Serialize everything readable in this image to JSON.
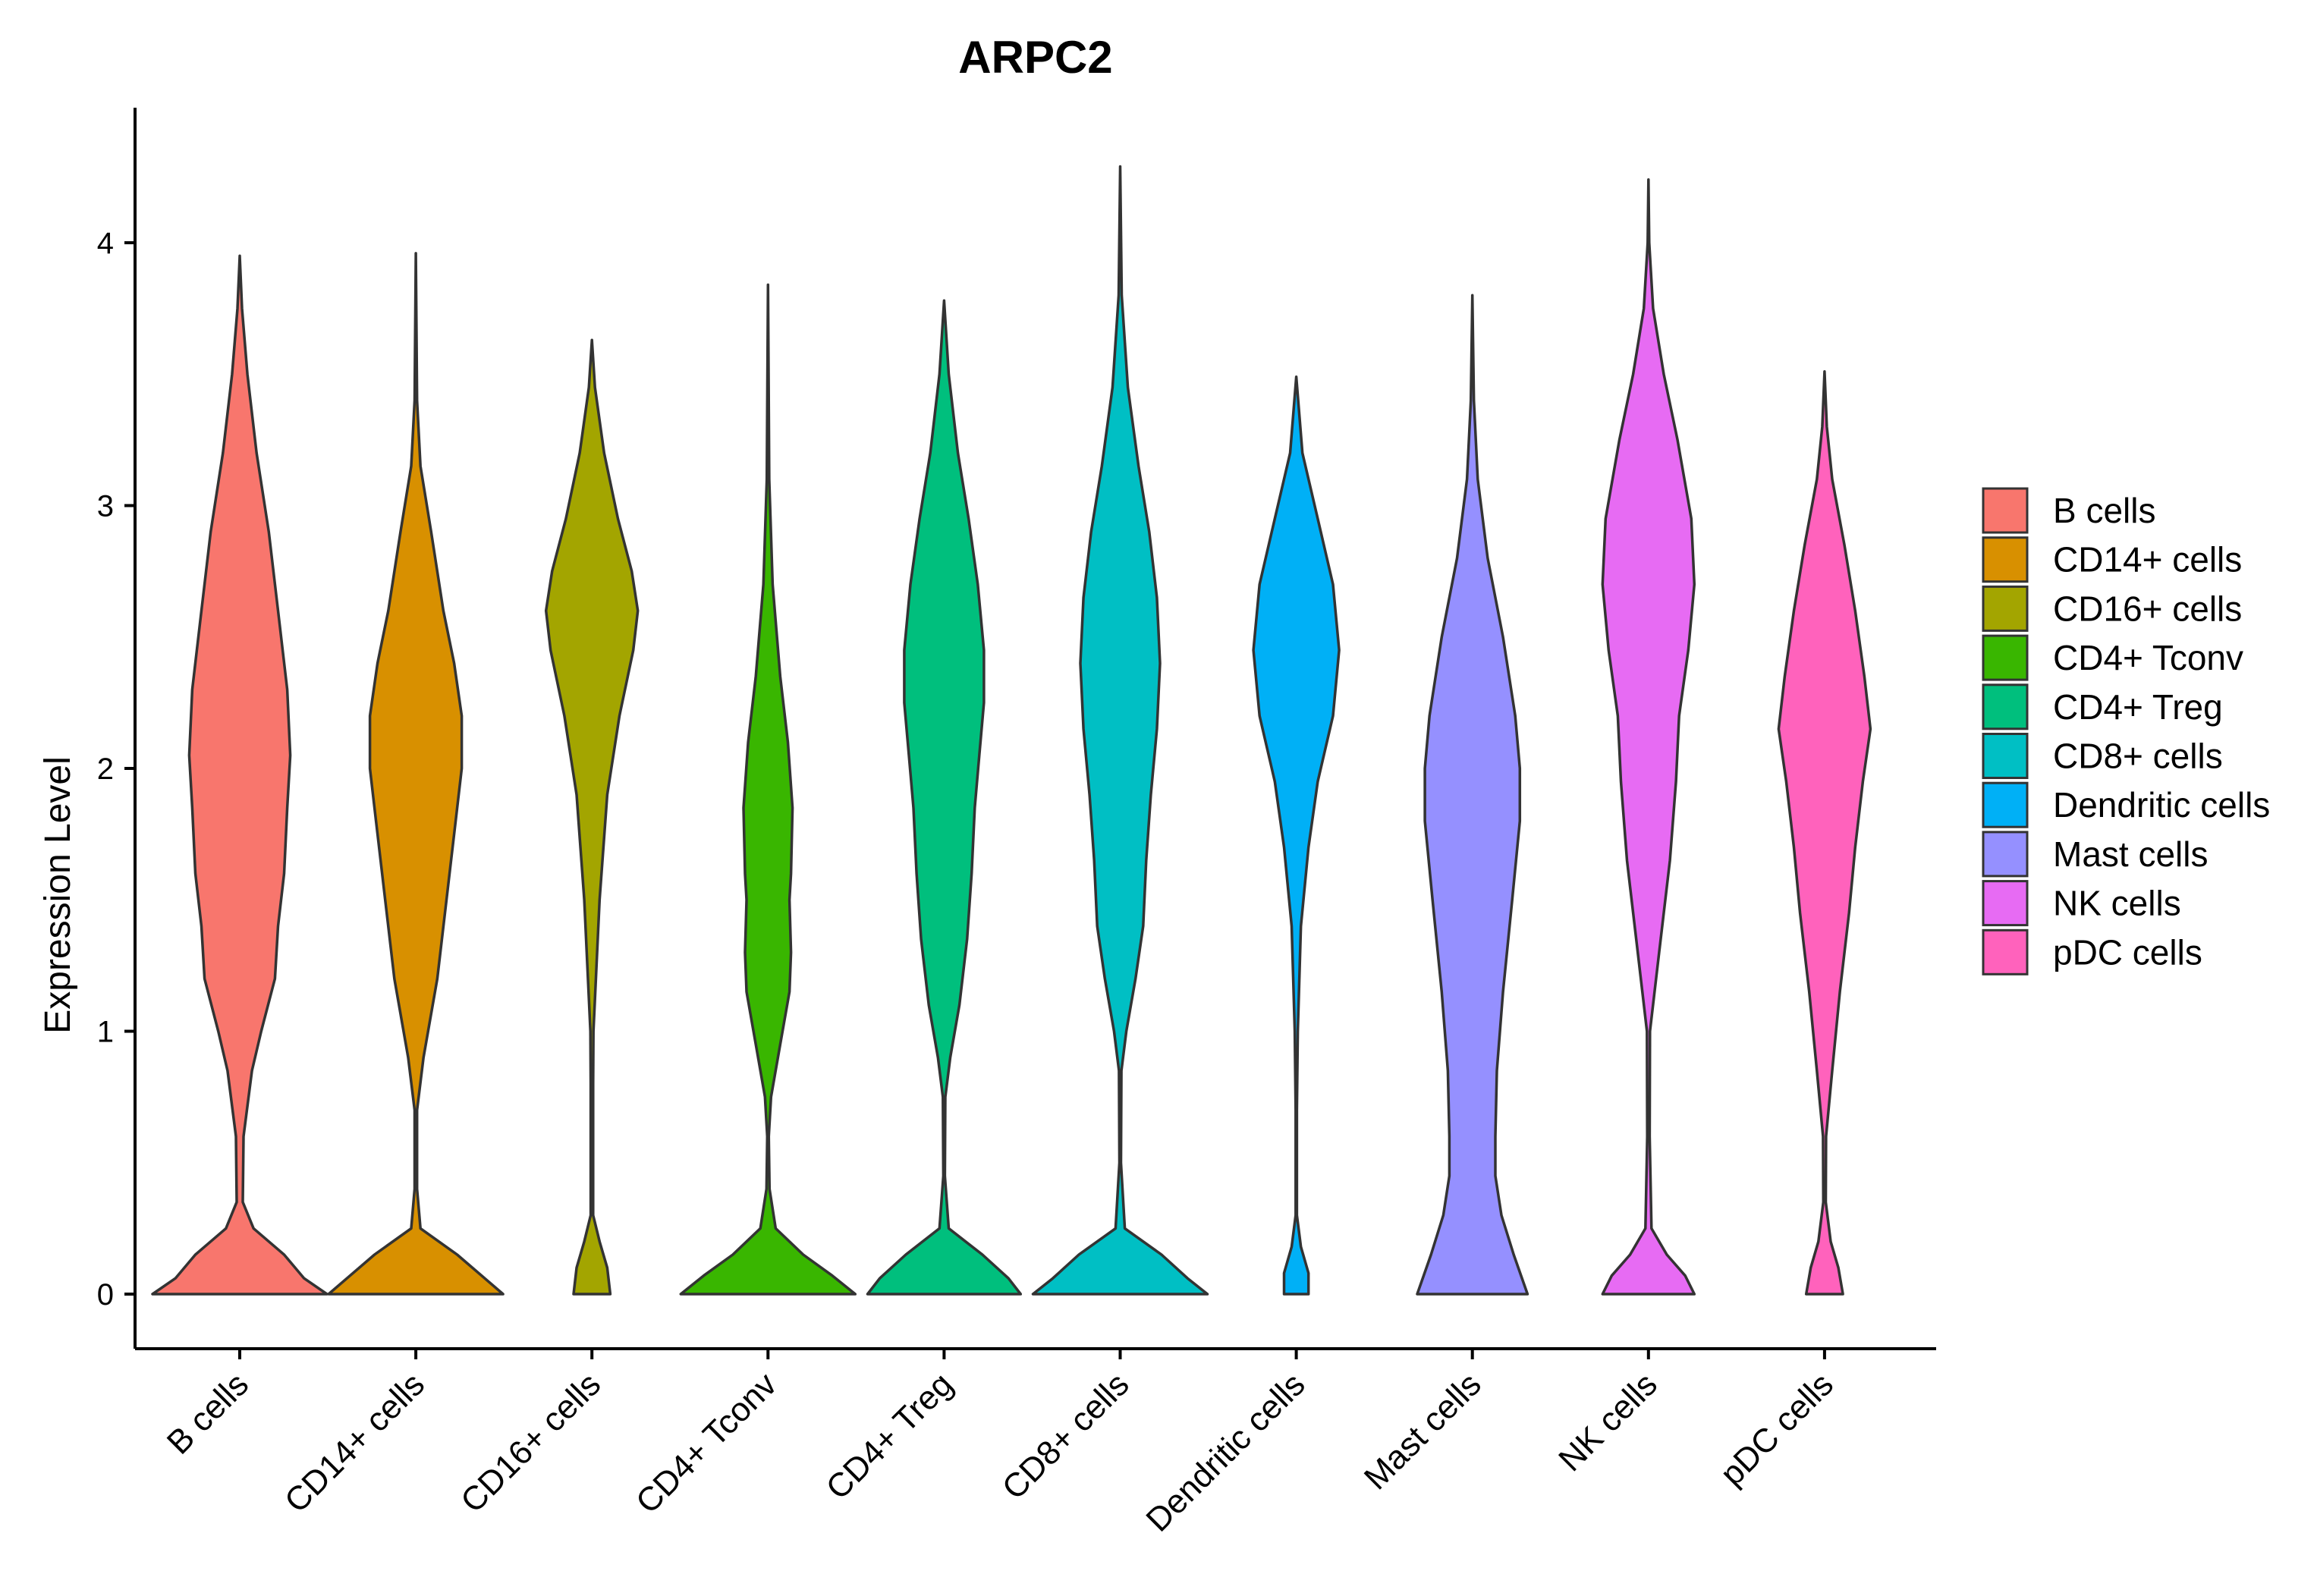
{
  "chart_data": {
    "type": "violin",
    "title": "ARPC2",
    "xlabel": "",
    "ylabel": "Expression Level",
    "ylim": [
      -0.2,
      4.5
    ],
    "yticks": [
      0,
      1,
      2,
      3,
      4
    ],
    "ytick_labels": [
      "0",
      "1",
      "2",
      "3",
      "4"
    ],
    "legend_position": "right",
    "grid": false,
    "categories": [
      "B cells",
      "CD14+ cells",
      "CD16+ cells",
      "CD4+ Tconv",
      "CD4+ Treg",
      "CD8+ cells",
      "Dendritic cells",
      "Mast cells",
      "NK cells",
      "pDC cells"
    ],
    "series": [
      {
        "name": "B cells",
        "color": "#F8766D",
        "max": 3.95,
        "profile": [
          [
            0,
            0.57
          ],
          [
            0.06,
            0.42
          ],
          [
            0.15,
            0.29
          ],
          [
            0.25,
            0.09
          ],
          [
            0.35,
            0.02
          ],
          [
            0.6,
            0.025
          ],
          [
            0.85,
            0.08
          ],
          [
            1.0,
            0.14
          ],
          [
            1.2,
            0.23
          ],
          [
            1.4,
            0.25
          ],
          [
            1.6,
            0.29
          ],
          [
            1.85,
            0.31
          ],
          [
            2.05,
            0.33
          ],
          [
            2.3,
            0.31
          ],
          [
            2.6,
            0.25
          ],
          [
            2.9,
            0.19
          ],
          [
            3.2,
            0.11
          ],
          [
            3.5,
            0.05
          ],
          [
            3.75,
            0.015
          ],
          [
            3.95,
            0
          ]
        ]
      },
      {
        "name": "CD14+ cells",
        "color": "#D89000",
        "max": 3.96,
        "profile": [
          [
            0,
            0.57
          ],
          [
            0.06,
            0.45
          ],
          [
            0.15,
            0.27
          ],
          [
            0.25,
            0.03
          ],
          [
            0.4,
            0.008
          ],
          [
            0.7,
            0.008
          ],
          [
            0.9,
            0.05
          ],
          [
            1.2,
            0.14
          ],
          [
            1.5,
            0.2
          ],
          [
            1.8,
            0.26
          ],
          [
            2.0,
            0.3
          ],
          [
            2.2,
            0.3
          ],
          [
            2.4,
            0.25
          ],
          [
            2.6,
            0.18
          ],
          [
            2.9,
            0.1
          ],
          [
            3.15,
            0.03
          ],
          [
            3.4,
            0.008
          ],
          [
            3.96,
            0
          ]
        ]
      },
      {
        "name": "CD16+ cells",
        "color": "#A3A500",
        "max": 3.63,
        "profile": [
          [
            0,
            0.12
          ],
          [
            0.1,
            0.1
          ],
          [
            0.2,
            0.05
          ],
          [
            0.3,
            0.008
          ],
          [
            0.8,
            0.008
          ],
          [
            1.0,
            0.01
          ],
          [
            1.5,
            0.05
          ],
          [
            1.9,
            0.1
          ],
          [
            2.2,
            0.18
          ],
          [
            2.45,
            0.27
          ],
          [
            2.6,
            0.3
          ],
          [
            2.75,
            0.26
          ],
          [
            2.95,
            0.17
          ],
          [
            3.2,
            0.08
          ],
          [
            3.45,
            0.02
          ],
          [
            3.63,
            0
          ]
        ]
      },
      {
        "name": "CD4+ Tconv",
        "color": "#39B600",
        "max": 3.84,
        "profile": [
          [
            0,
            0.57
          ],
          [
            0.07,
            0.42
          ],
          [
            0.15,
            0.23
          ],
          [
            0.25,
            0.05
          ],
          [
            0.4,
            0.01
          ],
          [
            0.6,
            0.005
          ],
          [
            0.75,
            0.02
          ],
          [
            0.95,
            0.08
          ],
          [
            1.15,
            0.14
          ],
          [
            1.3,
            0.15
          ],
          [
            1.5,
            0.14
          ],
          [
            1.6,
            0.15
          ],
          [
            1.85,
            0.16
          ],
          [
            2.1,
            0.13
          ],
          [
            2.35,
            0.08
          ],
          [
            2.7,
            0.03
          ],
          [
            3.1,
            0.008
          ],
          [
            3.84,
            0
          ]
        ]
      },
      {
        "name": "CD4+ Treg",
        "color": "#00BF7D",
        "max": 3.78,
        "profile": [
          [
            0,
            0.5
          ],
          [
            0.06,
            0.42
          ],
          [
            0.15,
            0.25
          ],
          [
            0.25,
            0.03
          ],
          [
            0.45,
            0.005
          ],
          [
            0.75,
            0.008
          ],
          [
            0.9,
            0.04
          ],
          [
            1.1,
            0.1
          ],
          [
            1.35,
            0.15
          ],
          [
            1.6,
            0.18
          ],
          [
            1.85,
            0.2
          ],
          [
            2.05,
            0.23
          ],
          [
            2.25,
            0.26
          ],
          [
            2.45,
            0.26
          ],
          [
            2.7,
            0.22
          ],
          [
            2.95,
            0.16
          ],
          [
            3.2,
            0.09
          ],
          [
            3.5,
            0.03
          ],
          [
            3.78,
            0
          ]
        ]
      },
      {
        "name": "CD8+ cells",
        "color": "#00BFC4",
        "max": 4.29,
        "profile": [
          [
            0,
            0.57
          ],
          [
            0.06,
            0.44
          ],
          [
            0.15,
            0.27
          ],
          [
            0.25,
            0.03
          ],
          [
            0.5,
            0.005
          ],
          [
            0.85,
            0.008
          ],
          [
            1.0,
            0.04
          ],
          [
            1.2,
            0.1
          ],
          [
            1.4,
            0.15
          ],
          [
            1.65,
            0.17
          ],
          [
            1.9,
            0.2
          ],
          [
            2.15,
            0.24
          ],
          [
            2.4,
            0.26
          ],
          [
            2.65,
            0.24
          ],
          [
            2.9,
            0.19
          ],
          [
            3.15,
            0.12
          ],
          [
            3.45,
            0.05
          ],
          [
            3.8,
            0.01
          ],
          [
            4.29,
            0
          ]
        ]
      },
      {
        "name": "Dendritic cells",
        "color": "#00B0F6",
        "max": 3.49,
        "profile": [
          [
            0,
            0.08
          ],
          [
            0.08,
            0.08
          ],
          [
            0.18,
            0.03
          ],
          [
            0.3,
            0.004
          ],
          [
            0.7,
            0.004
          ],
          [
            1.0,
            0.01
          ],
          [
            1.4,
            0.03
          ],
          [
            1.7,
            0.08
          ],
          [
            1.95,
            0.14
          ],
          [
            2.2,
            0.24
          ],
          [
            2.45,
            0.28
          ],
          [
            2.7,
            0.24
          ],
          [
            2.95,
            0.14
          ],
          [
            3.2,
            0.04
          ],
          [
            3.49,
            0
          ]
        ]
      },
      {
        "name": "Mast cells",
        "color": "#9590FF",
        "max": 3.8,
        "profile": [
          [
            0,
            0.36
          ],
          [
            0.15,
            0.27
          ],
          [
            0.3,
            0.19
          ],
          [
            0.45,
            0.15
          ],
          [
            0.6,
            0.15
          ],
          [
            0.85,
            0.16
          ],
          [
            1.15,
            0.2
          ],
          [
            1.5,
            0.26
          ],
          [
            1.8,
            0.31
          ],
          [
            2.0,
            0.31
          ],
          [
            2.2,
            0.28
          ],
          [
            2.5,
            0.2
          ],
          [
            2.8,
            0.1
          ],
          [
            3.1,
            0.035
          ],
          [
            3.4,
            0.01
          ],
          [
            3.8,
            0
          ]
        ]
      },
      {
        "name": "NK cells",
        "color": "#E76BF3",
        "max": 4.24,
        "profile": [
          [
            0,
            0.3
          ],
          [
            0.07,
            0.24
          ],
          [
            0.15,
            0.12
          ],
          [
            0.25,
            0.02
          ],
          [
            0.6,
            0.008
          ],
          [
            1.0,
            0.01
          ],
          [
            1.3,
            0.07
          ],
          [
            1.65,
            0.14
          ],
          [
            1.95,
            0.18
          ],
          [
            2.2,
            0.2
          ],
          [
            2.45,
            0.26
          ],
          [
            2.7,
            0.3
          ],
          [
            2.95,
            0.28
          ],
          [
            3.25,
            0.19
          ],
          [
            3.5,
            0.1
          ],
          [
            3.75,
            0.03
          ],
          [
            4.0,
            0.005
          ],
          [
            4.24,
            0
          ]
        ]
      },
      {
        "name": "pDC cells",
        "color": "#FF62BC",
        "max": 3.51,
        "profile": [
          [
            0,
            0.12
          ],
          [
            0.1,
            0.09
          ],
          [
            0.2,
            0.04
          ],
          [
            0.35,
            0.008
          ],
          [
            0.6,
            0.01
          ],
          [
            0.85,
            0.05
          ],
          [
            1.15,
            0.1
          ],
          [
            1.45,
            0.16
          ],
          [
            1.7,
            0.2
          ],
          [
            1.95,
            0.25
          ],
          [
            2.15,
            0.3
          ],
          [
            2.35,
            0.26
          ],
          [
            2.6,
            0.2
          ],
          [
            2.85,
            0.13
          ],
          [
            3.1,
            0.05
          ],
          [
            3.3,
            0.015
          ],
          [
            3.51,
            0
          ]
        ]
      }
    ]
  }
}
